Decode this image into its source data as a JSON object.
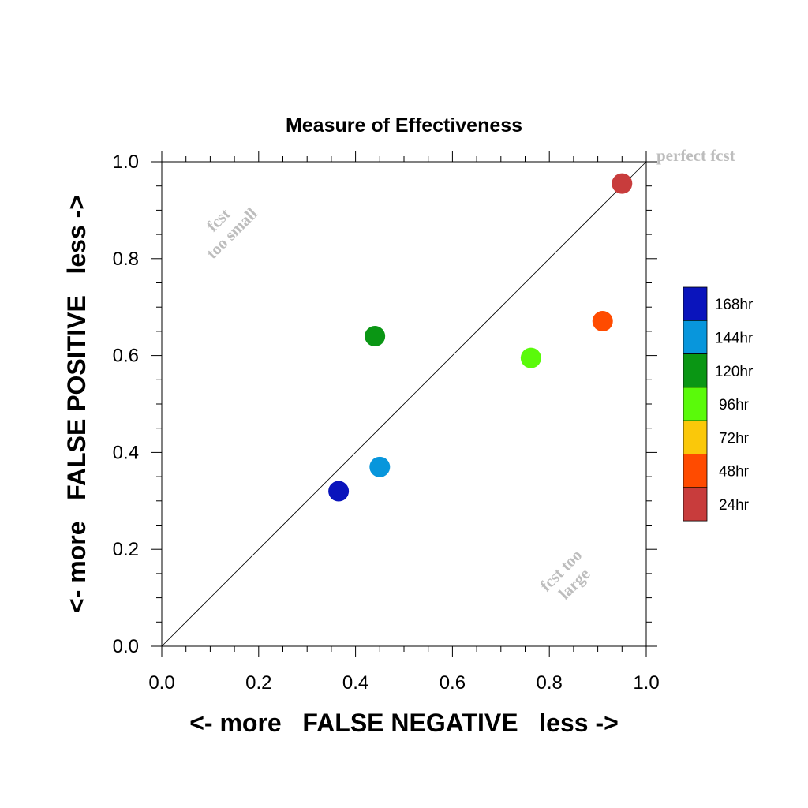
{
  "chart_data": {
    "type": "scatter",
    "title": "Measure of Effectiveness",
    "xlabel": "<- more   FALSE NEGATIVE   less ->",
    "ylabel": "<- more   FALSE POSITIVE   less ->",
    "xlim": [
      0,
      1
    ],
    "ylim": [
      0,
      1
    ],
    "x_ticks": [
      "0.0",
      "0.2",
      "0.4",
      "0.6",
      "0.8",
      "1.0"
    ],
    "y_ticks": [
      "0.0",
      "0.2",
      "0.4",
      "0.6",
      "0.8",
      "1.0"
    ],
    "grid": false,
    "diagonal_reference_line": true,
    "annotations": {
      "perfect": "perfect fcst",
      "too_small_line1": "fcst",
      "too_small_line2": "too small",
      "too_large_line1": "fcst too",
      "too_large_line2": "large"
    },
    "legend": {
      "placement": "right",
      "entries": [
        {
          "label": "168hr",
          "color": "#0a14bc"
        },
        {
          "label": "144hr",
          "color": "#0896dc"
        },
        {
          "label": "120hr",
          "color": "#0a9614"
        },
        {
          "label": "96hr",
          "color": "#5afa0a"
        },
        {
          "label": "72hr",
          "color": "#fac80a"
        },
        {
          "label": "48hr",
          "color": "#ff4b00"
        },
        {
          "label": "24hr",
          "color": "#c83c3c"
        }
      ]
    },
    "series": [
      {
        "name": "168hr",
        "color": "#0a14bc",
        "x": 0.365,
        "y": 0.32
      },
      {
        "name": "144hr",
        "color": "#0896dc",
        "x": 0.45,
        "y": 0.37
      },
      {
        "name": "120hr",
        "color": "#0a9614",
        "x": 0.44,
        "y": 0.64
      },
      {
        "name": "96hr",
        "color": "#5afa0a",
        "x": 0.762,
        "y": 0.595
      },
      {
        "name": "48hr",
        "color": "#ff4b00",
        "x": 0.91,
        "y": 0.671
      },
      {
        "name": "24hr",
        "color": "#c83c3c",
        "x": 0.95,
        "y": 0.955
      }
    ]
  }
}
